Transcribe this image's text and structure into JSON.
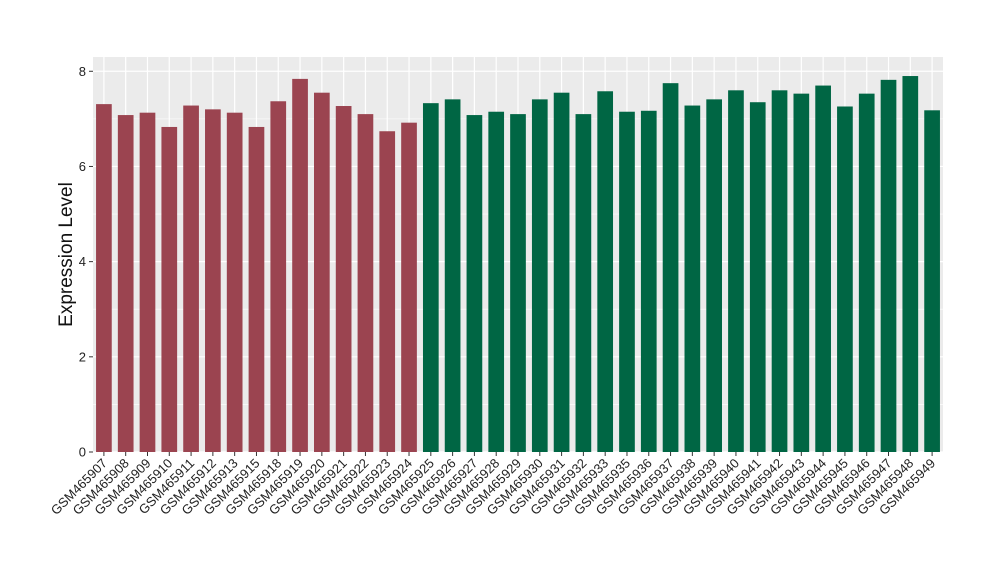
{
  "chart_data": {
    "type": "bar",
    "title": "",
    "xlabel": "",
    "ylabel": "Expression Level",
    "ylim": [
      0,
      8.3
    ],
    "yticks": [
      0,
      2,
      4,
      6,
      8
    ],
    "grid": true,
    "legend": "none",
    "colors": {
      "group_1": "#9b4450",
      "group_2": "#006644",
      "panel_bg": "#ebebeb",
      "grid": "#ffffff"
    },
    "categories": [
      "GSM465907",
      "GSM465908",
      "GSM465909",
      "GSM465910",
      "GSM465911",
      "GSM465912",
      "GSM465913",
      "GSM465915",
      "GSM465918",
      "GSM465919",
      "GSM465920",
      "GSM465921",
      "GSM465922",
      "GSM465923",
      "GSM465924",
      "GSM465925",
      "GSM465926",
      "GSM465927",
      "GSM465928",
      "GSM465929",
      "GSM465930",
      "GSM465931",
      "GSM465932",
      "GSM465933",
      "GSM465935",
      "GSM465936",
      "GSM465937",
      "GSM465938",
      "GSM465939",
      "GSM465940",
      "GSM465941",
      "GSM465942",
      "GSM465943",
      "GSM465944",
      "GSM465945",
      "GSM465946",
      "GSM465947",
      "GSM465948",
      "GSM465949"
    ],
    "values": [
      7.31,
      7.08,
      7.13,
      6.83,
      7.28,
      7.2,
      7.13,
      6.83,
      7.37,
      7.84,
      7.55,
      7.27,
      7.1,
      6.74,
      6.92,
      7.33,
      7.41,
      7.08,
      7.15,
      7.1,
      7.41,
      7.55,
      7.1,
      7.58,
      7.15,
      7.17,
      7.75,
      7.28,
      7.41,
      7.6,
      7.35,
      7.6,
      7.53,
      7.7,
      7.26,
      7.53,
      7.82,
      7.9,
      7.18
    ],
    "groups": [
      1,
      1,
      1,
      1,
      1,
      1,
      1,
      1,
      1,
      1,
      1,
      1,
      1,
      1,
      1,
      2,
      2,
      2,
      2,
      2,
      2,
      2,
      2,
      2,
      2,
      2,
      2,
      2,
      2,
      2,
      2,
      2,
      2,
      2,
      2,
      2,
      2,
      2,
      2
    ]
  }
}
